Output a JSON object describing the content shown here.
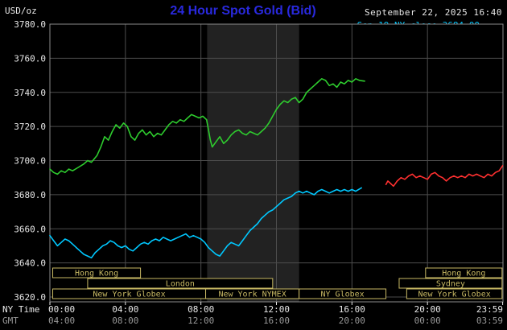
{
  "header": {
    "title": "24 Hour Spot Gold (Bid)",
    "datetime": "September 22, 2025 16:40",
    "units_label": "USD/oz",
    "watermark": "www.kitco.com"
  },
  "legend": [
    {
      "label": "Sep 19 NY close 3684.00",
      "color": "#00c8ff"
    },
    {
      "label": "Sep 21 Sunday",
      "color": "#ff3030"
    },
    {
      "label": "Sep 22 Last 3746.60",
      "color": "#2ecc2e"
    }
  ],
  "axes": {
    "ny_label": "NY Time",
    "gmt_label": "GMT",
    "y_ticks": [
      {
        "label": "3780.0",
        "value": 3780
      },
      {
        "label": "3760.0",
        "value": 3760
      },
      {
        "label": "3740.0",
        "value": 3740
      },
      {
        "label": "3720.0",
        "value": 3720
      },
      {
        "label": "3700.0",
        "value": 3700
      },
      {
        "label": "3680.0",
        "value": 3680
      },
      {
        "label": "3660.0",
        "value": 3660
      },
      {
        "label": "3640.0",
        "value": 3640
      },
      {
        "label": "3620.0",
        "value": 3620
      }
    ],
    "x_ticks": [
      {
        "h": 0,
        "ny": "00:00",
        "gmt": "04:00"
      },
      {
        "h": 4,
        "ny": "04:00",
        "gmt": "08:00"
      },
      {
        "h": 8,
        "ny": "08:00",
        "gmt": "12:00"
      },
      {
        "h": 12,
        "ny": "12:00",
        "gmt": "16:00"
      },
      {
        "h": 16,
        "ny": "16:00",
        "gmt": "20:00"
      },
      {
        "h": 20,
        "ny": "20:00",
        "gmt": "00:00"
      },
      {
        "h": 23.983,
        "ny": "23:59",
        "gmt": "03:59"
      }
    ]
  },
  "colors": {
    "background": "#000000",
    "title": "#2929dd",
    "watermark": "#3d3dff",
    "axis_text": "#e8e8e8",
    "gmt_text": "#999999",
    "grid": "#4d4d4d",
    "border": "#8c8c8c",
    "band": "#222222",
    "session": "#c8b964"
  },
  "chart_data": {
    "type": "line",
    "title": "24 Hour Spot Gold (Bid)",
    "xlabel": "NY Time",
    "ylabel": "USD/oz",
    "xlim": [
      0,
      24
    ],
    "ylim": [
      3620,
      3780
    ],
    "x_unit": "hours",
    "grid": true,
    "nymex_band_hours": [
      8.33,
      13.2
    ],
    "series": [
      {
        "id": "sep22",
        "name": "Sep 22 Last",
        "color": "#2ecc2e",
        "last": 3746.6,
        "points": [
          [
            0,
            3695
          ],
          [
            0.2,
            3693
          ],
          [
            0.4,
            3692
          ],
          [
            0.6,
            3694
          ],
          [
            0.8,
            3693
          ],
          [
            1,
            3695
          ],
          [
            1.2,
            3694
          ],
          [
            1.5,
            3696
          ],
          [
            1.8,
            3698
          ],
          [
            2,
            3700
          ],
          [
            2.2,
            3699
          ],
          [
            2.5,
            3703
          ],
          [
            2.7,
            3708
          ],
          [
            2.9,
            3714
          ],
          [
            3.1,
            3712
          ],
          [
            3.3,
            3717
          ],
          [
            3.5,
            3721
          ],
          [
            3.7,
            3719
          ],
          [
            3.9,
            3722
          ],
          [
            4.1,
            3720
          ],
          [
            4.3,
            3714
          ],
          [
            4.5,
            3712
          ],
          [
            4.7,
            3716
          ],
          [
            4.9,
            3718
          ],
          [
            5.1,
            3715
          ],
          [
            5.3,
            3717
          ],
          [
            5.5,
            3714
          ],
          [
            5.7,
            3716
          ],
          [
            5.9,
            3715
          ],
          [
            6.1,
            3718
          ],
          [
            6.3,
            3721
          ],
          [
            6.5,
            3723
          ],
          [
            6.7,
            3722
          ],
          [
            6.9,
            3724
          ],
          [
            7.1,
            3723
          ],
          [
            7.3,
            3725
          ],
          [
            7.5,
            3727
          ],
          [
            7.7,
            3726
          ],
          [
            7.9,
            3725
          ],
          [
            8.1,
            3726
          ],
          [
            8.3,
            3724
          ],
          [
            8.5,
            3712
          ],
          [
            8.6,
            3708
          ],
          [
            8.8,
            3711
          ],
          [
            9,
            3714
          ],
          [
            9.2,
            3710
          ],
          [
            9.4,
            3712
          ],
          [
            9.6,
            3715
          ],
          [
            9.8,
            3717
          ],
          [
            10,
            3718
          ],
          [
            10.2,
            3716
          ],
          [
            10.4,
            3715
          ],
          [
            10.6,
            3717
          ],
          [
            10.8,
            3716
          ],
          [
            11,
            3715
          ],
          [
            11.2,
            3717
          ],
          [
            11.4,
            3719
          ],
          [
            11.6,
            3722
          ],
          [
            11.8,
            3726
          ],
          [
            12,
            3730
          ],
          [
            12.2,
            3733
          ],
          [
            12.4,
            3735
          ],
          [
            12.6,
            3734
          ],
          [
            12.8,
            3736
          ],
          [
            13,
            3737
          ],
          [
            13.2,
            3734
          ],
          [
            13.4,
            3736
          ],
          [
            13.6,
            3740
          ],
          [
            13.8,
            3742
          ],
          [
            14,
            3744
          ],
          [
            14.2,
            3746
          ],
          [
            14.4,
            3748
          ],
          [
            14.6,
            3747
          ],
          [
            14.8,
            3744
          ],
          [
            15,
            3745
          ],
          [
            15.2,
            3743
          ],
          [
            15.4,
            3746
          ],
          [
            15.6,
            3745
          ],
          [
            15.8,
            3747
          ],
          [
            16,
            3746
          ],
          [
            16.2,
            3748
          ],
          [
            16.4,
            3747
          ],
          [
            16.67,
            3746.6
          ]
        ]
      },
      {
        "id": "sep19",
        "name": "Sep 19 NY close",
        "color": "#00c8ff",
        "close": 3684.0,
        "points": [
          [
            0,
            3656
          ],
          [
            0.2,
            3653
          ],
          [
            0.4,
            3650
          ],
          [
            0.6,
            3652
          ],
          [
            0.8,
            3654
          ],
          [
            1,
            3653
          ],
          [
            1.2,
            3651
          ],
          [
            1.4,
            3649
          ],
          [
            1.6,
            3647
          ],
          [
            1.8,
            3645
          ],
          [
            2,
            3644
          ],
          [
            2.2,
            3643
          ],
          [
            2.4,
            3646
          ],
          [
            2.6,
            3648
          ],
          [
            2.8,
            3650
          ],
          [
            3,
            3651
          ],
          [
            3.2,
            3653
          ],
          [
            3.4,
            3652
          ],
          [
            3.6,
            3650
          ],
          [
            3.8,
            3649
          ],
          [
            4,
            3650
          ],
          [
            4.2,
            3648
          ],
          [
            4.4,
            3647
          ],
          [
            4.6,
            3649
          ],
          [
            4.8,
            3651
          ],
          [
            5,
            3652
          ],
          [
            5.2,
            3651
          ],
          [
            5.4,
            3653
          ],
          [
            5.6,
            3654
          ],
          [
            5.8,
            3653
          ],
          [
            6,
            3655
          ],
          [
            6.2,
            3654
          ],
          [
            6.4,
            3653
          ],
          [
            6.6,
            3654
          ],
          [
            6.8,
            3655
          ],
          [
            7,
            3656
          ],
          [
            7.2,
            3657
          ],
          [
            7.4,
            3655
          ],
          [
            7.6,
            3656
          ],
          [
            7.8,
            3655
          ],
          [
            8,
            3654
          ],
          [
            8.2,
            3652
          ],
          [
            8.4,
            3649
          ],
          [
            8.6,
            3647
          ],
          [
            8.8,
            3645
          ],
          [
            9,
            3644
          ],
          [
            9.2,
            3647
          ],
          [
            9.4,
            3650
          ],
          [
            9.6,
            3652
          ],
          [
            9.8,
            3651
          ],
          [
            10,
            3650
          ],
          [
            10.2,
            3653
          ],
          [
            10.4,
            3656
          ],
          [
            10.6,
            3659
          ],
          [
            10.8,
            3661
          ],
          [
            11,
            3663
          ],
          [
            11.2,
            3666
          ],
          [
            11.4,
            3668
          ],
          [
            11.6,
            3670
          ],
          [
            11.8,
            3671
          ],
          [
            12,
            3673
          ],
          [
            12.2,
            3675
          ],
          [
            12.4,
            3677
          ],
          [
            12.6,
            3678
          ],
          [
            12.8,
            3679
          ],
          [
            13,
            3681
          ],
          [
            13.2,
            3682
          ],
          [
            13.4,
            3681
          ],
          [
            13.6,
            3682
          ],
          [
            13.8,
            3681
          ],
          [
            14,
            3680
          ],
          [
            14.2,
            3682
          ],
          [
            14.4,
            3683
          ],
          [
            14.6,
            3682
          ],
          [
            14.8,
            3681
          ],
          [
            15,
            3682
          ],
          [
            15.2,
            3683
          ],
          [
            15.4,
            3682
          ],
          [
            15.6,
            3683
          ],
          [
            15.8,
            3682
          ],
          [
            16,
            3683
          ],
          [
            16.2,
            3682
          ],
          [
            16.5,
            3684
          ]
        ]
      },
      {
        "id": "sep21",
        "name": "Sep 21 Sunday",
        "color": "#ff3030",
        "points": [
          [
            17.8,
            3686
          ],
          [
            17.9,
            3688
          ],
          [
            18,
            3687
          ],
          [
            18.2,
            3685
          ],
          [
            18.4,
            3688
          ],
          [
            18.6,
            3690
          ],
          [
            18.8,
            3689
          ],
          [
            19,
            3691
          ],
          [
            19.2,
            3692
          ],
          [
            19.4,
            3690
          ],
          [
            19.6,
            3691
          ],
          [
            19.8,
            3690
          ],
          [
            20,
            3689
          ],
          [
            20.2,
            3692
          ],
          [
            20.4,
            3693
          ],
          [
            20.6,
            3691
          ],
          [
            20.8,
            3690
          ],
          [
            21,
            3688
          ],
          [
            21.2,
            3690
          ],
          [
            21.4,
            3691
          ],
          [
            21.6,
            3690
          ],
          [
            21.8,
            3691
          ],
          [
            22,
            3690
          ],
          [
            22.2,
            3692
          ],
          [
            22.4,
            3691
          ],
          [
            22.6,
            3692
          ],
          [
            22.8,
            3691
          ],
          [
            23,
            3690
          ],
          [
            23.2,
            3692
          ],
          [
            23.4,
            3691
          ],
          [
            23.6,
            3693
          ],
          [
            23.8,
            3694
          ],
          [
            23.98,
            3697
          ]
        ]
      }
    ],
    "sessions": [
      {
        "row": 0,
        "label": "Hong Kong",
        "start": 0.15,
        "end": 4.8
      },
      {
        "row": 0,
        "label": "Hong Kong",
        "start": 19.9,
        "end": 23.95
      },
      {
        "row": 1,
        "label": "London",
        "start": 2.0,
        "end": 11.8
      },
      {
        "row": 1,
        "label": "Sydney",
        "start": 18.5,
        "end": 23.95
      },
      {
        "row": 2,
        "label": "New York Globex",
        "start": 0.15,
        "end": 8.25
      },
      {
        "row": 2,
        "label": "New York NYMEX",
        "start": 8.25,
        "end": 13.2
      },
      {
        "row": 2,
        "label": "NY Globex",
        "start": 13.2,
        "end": 17.8
      },
      {
        "row": 2,
        "label": "New York Globex",
        "start": 18.9,
        "end": 23.95
      }
    ]
  }
}
